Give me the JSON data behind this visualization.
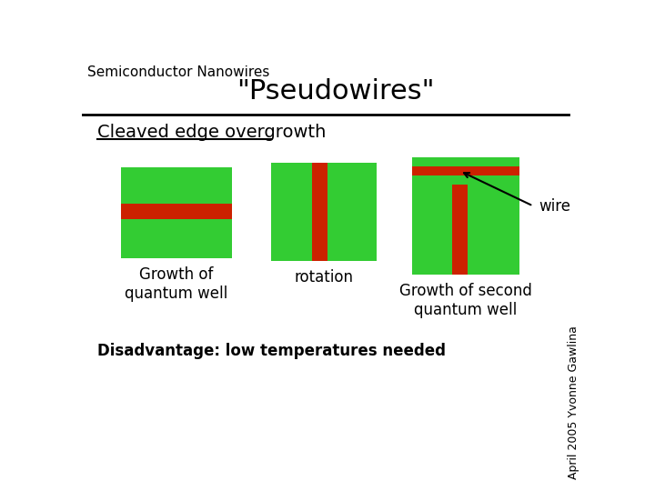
{
  "title": "\"Pseudowires\"",
  "subtitle": "Semiconductor Nanowires",
  "section_title": "Cleaved edge overgrowth",
  "label1": "Growth of\nquantum well",
  "label2": "rotation",
  "label3": "Growth of second\nquantum well",
  "wire_label": "wire",
  "disadvantage": "Disadvantage: low temperatures needed",
  "credit": "April 2005 Yvonne Gawlina",
  "bg_color": "#ffffff",
  "green_color": "#33cc33",
  "red_color": "#cc2200",
  "title_fontsize": 22,
  "subtitle_fontsize": 11,
  "section_fontsize": 14,
  "label_fontsize": 12,
  "disadv_fontsize": 12,
  "credit_fontsize": 9
}
